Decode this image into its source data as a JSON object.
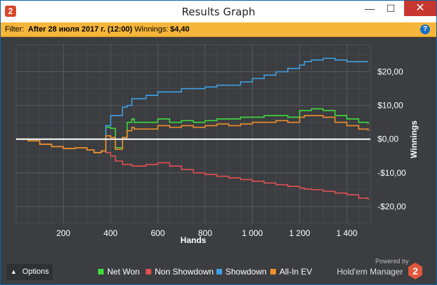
{
  "window": {
    "title": "Results Graph",
    "app_icon": "2",
    "controls": {
      "minimize": "—",
      "maximize": "☐",
      "close": "✕"
    }
  },
  "filter": {
    "label": "Filter:",
    "value": "After 28 июля 2017 г. (12:00)",
    "winnings_label": "Winnings:",
    "winnings_value": "$4,40",
    "help_icon": "?"
  },
  "bottom": {
    "options_label": "Options",
    "powered_by": "Powered by",
    "brand": "Hold'em Manager",
    "brand_logo": "2"
  },
  "colors": {
    "net_won": "#3ddc3d",
    "non_showdown": "#e0504f",
    "showdown": "#3fa0e6",
    "all_in_ev": "#f1902b",
    "background": "#3b3d40",
    "grid": "#4f5256"
  },
  "chart_data": {
    "type": "line",
    "xlabel": "Hands",
    "ylabel": "Winnings",
    "xlim": [
      0,
      1500
    ],
    "ylim": [
      -25,
      28
    ],
    "x_ticks": [
      200,
      400,
      600,
      800,
      1000,
      1200,
      1400
    ],
    "x_tick_labels": [
      "200",
      "400",
      "600",
      "800",
      "1 000",
      "1 200",
      "1 400"
    ],
    "y_ticks": [
      20,
      10,
      0,
      -10,
      -20
    ],
    "y_tick_labels": [
      "$20,00",
      "$10,00",
      "$0,00",
      "-$10,00",
      "-$20,00"
    ],
    "legend_position": "bottom",
    "x": [
      0,
      50,
      100,
      150,
      200,
      250,
      300,
      330,
      360,
      380,
      400,
      420,
      450,
      470,
      490,
      500,
      550,
      600,
      650,
      700,
      750,
      800,
      850,
      900,
      950,
      1000,
      1050,
      1100,
      1150,
      1200,
      1220,
      1250,
      1300,
      1350,
      1400,
      1450,
      1490
    ],
    "series": [
      {
        "name": "Net Won",
        "color": "#3ddc3d",
        "values": [
          0,
          -0.5,
          -1.5,
          -2.2,
          -2.8,
          -2.6,
          -3.2,
          -4,
          -3.5,
          3.5,
          3.2,
          -2.5,
          0.5,
          5,
          6,
          5,
          5,
          6,
          5,
          5.5,
          5,
          5.5,
          6,
          6,
          6.5,
          6.5,
          7,
          7,
          6.5,
          8.5,
          8.5,
          9,
          8.5,
          7,
          6,
          5,
          4.5
        ]
      },
      {
        "name": "Non Showdown",
        "color": "#e0504f",
        "values": [
          0,
          -0.5,
          -1.5,
          -2.2,
          -2.8,
          -2.6,
          -3.2,
          -4,
          -3.5,
          -4,
          -5,
          -6.5,
          -7.5,
          -7.5,
          -8,
          -8,
          -7.5,
          -7,
          -8,
          -9,
          -10,
          -10.5,
          -11,
          -11.5,
          -12,
          -12.5,
          -13,
          -13.5,
          -14,
          -14.5,
          -14.8,
          -15,
          -15.5,
          -16,
          -16.5,
          -17.5,
          -18
        ]
      },
      {
        "name": "Showdown",
        "color": "#3fa0e6",
        "values": [
          0,
          0,
          0,
          0,
          0,
          0,
          0,
          0,
          0,
          4,
          7,
          7,
          9.5,
          10,
          12,
          12,
          13,
          14,
          14,
          15,
          15,
          15.5,
          16,
          16,
          17,
          18,
          19,
          20,
          21,
          22,
          23,
          23.5,
          24,
          23.5,
          23,
          23,
          23
        ]
      },
      {
        "name": "All-In EV",
        "color": "#f1902b",
        "values": [
          0,
          -0.5,
          -1.5,
          -2.2,
          -2.8,
          -2.6,
          -3.2,
          -4,
          -3.5,
          1,
          0.5,
          -3,
          0.5,
          2.5,
          3.5,
          3,
          3,
          4,
          3.5,
          4,
          3.5,
          4,
          4.5,
          4,
          4.5,
          5,
          5,
          5.5,
          5,
          6.5,
          7,
          7,
          6.5,
          5,
          4,
          3,
          2.5
        ]
      }
    ]
  }
}
